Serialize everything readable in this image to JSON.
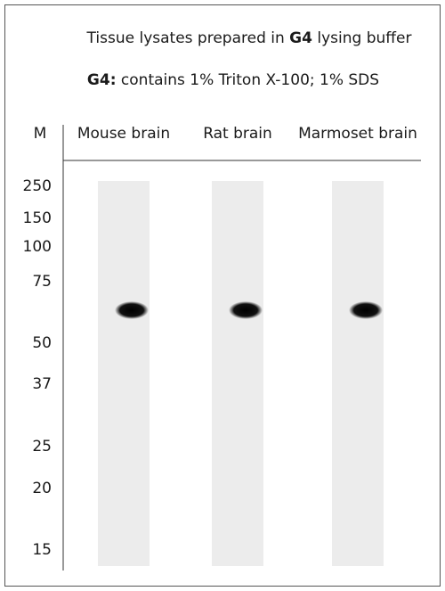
{
  "header": {
    "title": [
      "Tissue lysates prepared in ",
      "G4",
      " lysing buffer"
    ],
    "subtitle": [
      "G4:",
      " contains 1% Triton X-100; 1% SDS"
    ]
  },
  "marker_label": "M",
  "markers": [
    "250",
    "150",
    "100",
    "75",
    "50",
    "37",
    "25",
    "20",
    "15"
  ],
  "lanes": [
    "Mouse brain",
    "Rat brain",
    "Marmoset brain"
  ]
}
